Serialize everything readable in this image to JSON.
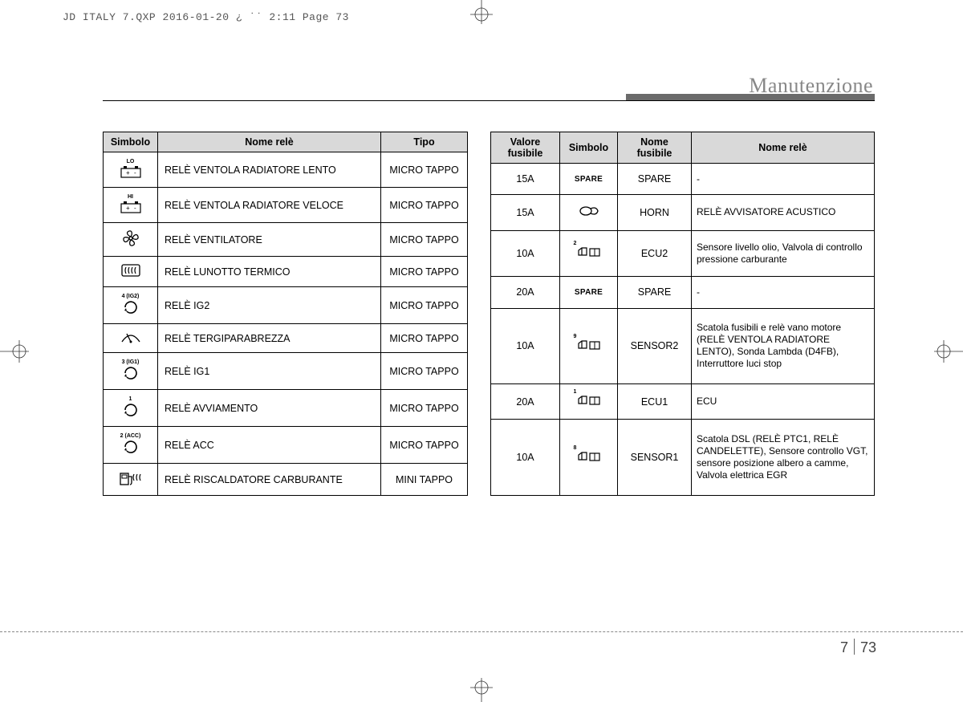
{
  "header": "JD ITALY 7.QXP  2016-01-20  ¿ ˙˙  2:11  Page 73",
  "section_title": "Manutenzione",
  "left_table": {
    "headers": [
      "Simbolo",
      "Nome relè",
      "Tipo"
    ],
    "rows": [
      {
        "sup": "LO",
        "sym": "battery",
        "name": "RELÈ VENTOLA RADIATORE LENTO",
        "type": "MICRO TAPPO"
      },
      {
        "sup": "HI",
        "sym": "battery",
        "name": "RELÈ VENTOLA RADIATORE VELOCE",
        "type": "MICRO TAPPO"
      },
      {
        "sup": "",
        "sym": "fan",
        "name": "RELÈ VENTILATORE",
        "type": "MICRO TAPPO"
      },
      {
        "sup": "",
        "sym": "defrost",
        "name": "RELÈ LUNOTTO TERMICO",
        "type": "MICRO TAPPO"
      },
      {
        "sup": "4 (IG2)",
        "sym": "arrow",
        "name": "RELÈ IG2",
        "type": "MICRO TAPPO"
      },
      {
        "sup": "",
        "sym": "wiper",
        "name": "RELÈ TERGIPARABREZZA",
        "type": "MICRO TAPPO"
      },
      {
        "sup": "3 (IG1)",
        "sym": "arrow",
        "name": "RELÈ IG1",
        "type": "MICRO TAPPO"
      },
      {
        "sup": "1",
        "sym": "arrow",
        "name": "RELÈ AVVIAMENTO",
        "type": "MICRO TAPPO"
      },
      {
        "sup": "2 (ACC)",
        "sym": "arrow",
        "name": "RELÈ ACC",
        "type": "MICRO TAPPO"
      },
      {
        "sup": "",
        "sym": "fuel",
        "name": "RELÈ RISCALDATORE CARBURANTE",
        "type": "MINI TAPPO"
      }
    ]
  },
  "right_table": {
    "headers": [
      "Valore fusibile",
      "Simbolo",
      "Nome fusibile",
      "Nome relè"
    ],
    "rows": [
      {
        "val": "15A",
        "sym_type": "spare",
        "sym_num": "",
        "fname": "SPARE",
        "rname": "-"
      },
      {
        "val": "15A",
        "sym_type": "horn",
        "sym_num": "",
        "fname": "HORN",
        "rname": "RELÈ AVVISATORE ACUSTICO"
      },
      {
        "val": "10A",
        "sym_type": "ecu",
        "sym_num": "2",
        "fname": "ECU2",
        "rname": "Sensore livello olio, Valvola di controllo pressione carburante"
      },
      {
        "val": "20A",
        "sym_type": "spare",
        "sym_num": "",
        "fname": "SPARE",
        "rname": "-"
      },
      {
        "val": "10A",
        "sym_type": "ecu",
        "sym_num": "9",
        "fname": "SENSOR2",
        "rname": "Scatola fusibili e relè vano motore (RELÈ VENTOLA RADIATORE LENTO), Sonda Lambda (D4FB), Interruttore luci stop"
      },
      {
        "val": "20A",
        "sym_type": "ecu",
        "sym_num": "1",
        "fname": "ECU1",
        "rname": "ECU"
      },
      {
        "val": "10A",
        "sym_type": "ecu",
        "sym_num": "8",
        "fname": "SENSOR1",
        "rname": "Scatola DSL (RELÈ PTC1, RELÈ CANDELETTE), Sensore controllo VGT, sensore posizione albero a camme, Valvola elettrica EGR"
      }
    ]
  },
  "page": {
    "chapter": "7",
    "num": "73"
  }
}
